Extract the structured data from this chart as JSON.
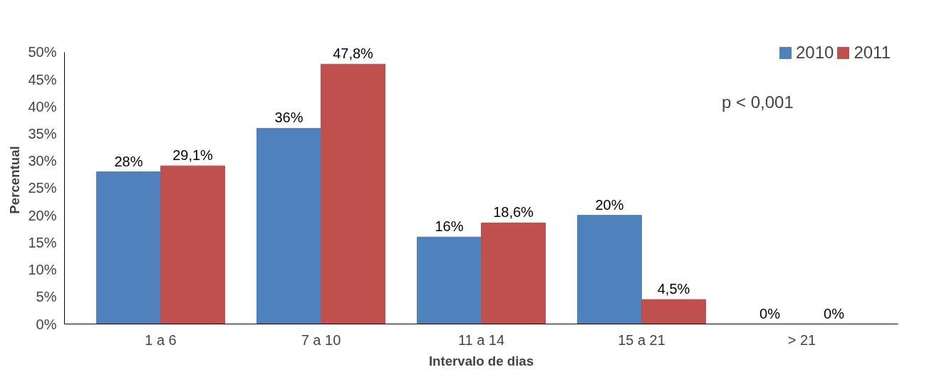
{
  "chart_data": {
    "type": "bar",
    "xlabel": "Intervalo de dias",
    "ylabel": "Percentual",
    "categories": [
      "1 a 6",
      "7 a 10",
      "11 a 14",
      "15 a 21",
      "> 21"
    ],
    "series": [
      {
        "name": "2010",
        "color": "#4f81bd",
        "values": [
          28,
          36,
          16,
          20,
          0
        ],
        "value_labels": [
          "28%",
          "36%",
          "16%",
          "20%",
          "0%"
        ]
      },
      {
        "name": "2011",
        "color": "#c0504d",
        "values": [
          29.1,
          47.8,
          18.6,
          4.5,
          0
        ],
        "value_labels": [
          "29,1%",
          "47,8%",
          "18,6%",
          "4,5%",
          "0%"
        ]
      }
    ],
    "ylim": [
      0,
      50
    ],
    "yticks": [
      {
        "value": 0,
        "label": "0%"
      },
      {
        "value": 5,
        "label": "5%"
      },
      {
        "value": 10,
        "label": "10%"
      },
      {
        "value": 15,
        "label": "15%"
      },
      {
        "value": 20,
        "label": "20%"
      },
      {
        "value": 25,
        "label": "25%"
      },
      {
        "value": 30,
        "label": "30%"
      },
      {
        "value": 35,
        "label": "35%"
      },
      {
        "value": 40,
        "label": "40%"
      },
      {
        "value": 45,
        "label": "45%"
      },
      {
        "value": 50,
        "label": "50%"
      }
    ],
    "legend": "top right",
    "grid": false,
    "annotations": [
      "p < 0,001"
    ]
  }
}
